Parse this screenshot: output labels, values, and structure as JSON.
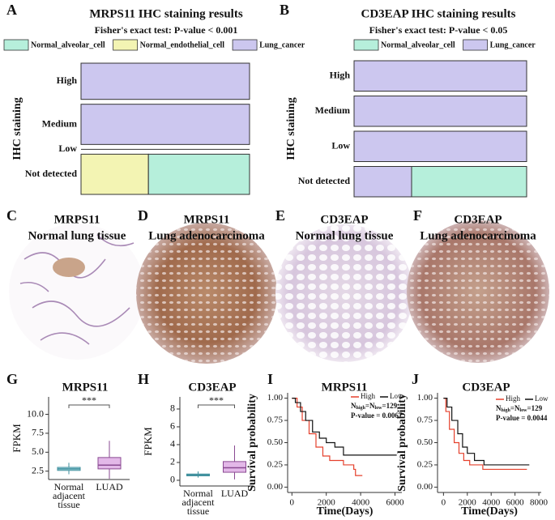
{
  "panel_labels": [
    "A",
    "B",
    "C",
    "D",
    "E",
    "F",
    "G",
    "H",
    "I",
    "J"
  ],
  "images": [
    {
      "title": "MRPS11",
      "subtitle": "Normal lung tissue"
    },
    {
      "title": "MRPS11",
      "subtitle": "Lung adenocarcinoma"
    },
    {
      "title": "CD3EAP",
      "subtitle": "Normal lung tissue"
    },
    {
      "title": "CD3EAP",
      "subtitle": "Lung adenocarcinoma"
    }
  ],
  "chart_data": [
    {
      "type": "mosaic",
      "title": "MRPS11 IHC staining results",
      "subtitle": "Fisher's exact test: P-value < 0.001",
      "ylabel": "IHC staining",
      "categories": [
        "High",
        "Medium",
        "Low",
        "Not detected"
      ],
      "series": [
        {
          "name": "Normal_alveolar_cell",
          "color": "#b6efdb",
          "values": [
            0,
            0,
            0,
            6
          ]
        },
        {
          "name": "Normal_endothelial_cell",
          "color": "#f3f4b3",
          "values": [
            0,
            0,
            0,
            4
          ]
        },
        {
          "name": "Lung_cancer",
          "color": "#ccc7ef",
          "values": [
            9,
            10,
            0,
            0
          ]
        }
      ]
    },
    {
      "type": "mosaic",
      "title": "CD3EAP IHC staining results",
      "subtitle": "Fisher's exact test: P-value < 0.05",
      "ylabel": "IHC staining",
      "categories": [
        "High",
        "Medium",
        "Low",
        "Not detected"
      ],
      "series": [
        {
          "name": "Normal_alveolar_cell",
          "color": "#b6efdb",
          "values": [
            0,
            0,
            0,
            4
          ]
        },
        {
          "name": "Lung_cancer",
          "color": "#ccc7ef",
          "values": [
            6,
            6,
            6,
            2
          ]
        }
      ]
    },
    {
      "type": "box",
      "title": "MRPS11",
      "ylabel": "FPKM",
      "annotation": "***",
      "categories": [
        "Normal adjacent tissue",
        "LUAD"
      ],
      "boxes": [
        {
          "whisker_low": 2.1,
          "q1": 2.6,
          "median": 2.8,
          "q3": 3.0,
          "whisker_high": 3.6,
          "color": "#a9dce6",
          "edge_color": "#3f8f9c"
        },
        {
          "whisker_low": 1.5,
          "q1": 2.8,
          "median": 3.3,
          "q3": 4.3,
          "whisker_high": 6.5,
          "color": "#dca6e2",
          "edge_color": "#8a4a92"
        }
      ],
      "ylim": [
        1.4,
        12.3
      ],
      "yticks": [
        {
          "value": 2.5,
          "label": "2.5"
        },
        {
          "value": 5,
          "label": "5.0"
        },
        {
          "value": 7.5,
          "label": "7.5"
        },
        {
          "value": 10,
          "label": "10.0"
        }
      ]
    },
    {
      "type": "box",
      "title": "CD3EAP",
      "ylabel": "FPKM",
      "annotation": "***",
      "categories": [
        "Normal adjacent tissue",
        "LUAD"
      ],
      "boxes": [
        {
          "whisker_low": 0.3,
          "q1": 0.5,
          "median": 0.6,
          "q3": 0.7,
          "whisker_high": 1.0,
          "color": "#a9dce6",
          "edge_color": "#3f8f9c"
        },
        {
          "whisker_low": 0.1,
          "q1": 0.9,
          "median": 1.4,
          "q3": 2.1,
          "whisker_high": 3.9,
          "color": "#dca6e2",
          "edge_color": "#8a4a92"
        }
      ],
      "ylim": [
        -0.64,
        9.36
      ],
      "yticks": [
        0,
        2,
        4,
        6,
        8
      ]
    },
    {
      "type": "km",
      "title": "MRPS11",
      "xlabel": "Time(Days)",
      "ylabel": "Survival probability",
      "n_label": [
        "N",
        "high",
        "=N",
        "low",
        "=129"
      ],
      "p_label": "P-value = 0.0067",
      "series": [
        {
          "name": "High",
          "color": "#e5402c",
          "x": [
            0,
            300,
            600,
            1000,
            1400,
            1800,
            2200,
            3000,
            3600,
            3700,
            4100
          ],
          "values": [
            1,
            0.9,
            0.75,
            0.6,
            0.45,
            0.35,
            0.3,
            0.25,
            0.2,
            0.13,
            0.13
          ]
        },
        {
          "name": "Low",
          "color": "#111111",
          "x": [
            0,
            200,
            500,
            800,
            1200,
            1600,
            2000,
            2500,
            3000,
            6100
          ],
          "values": [
            1,
            0.95,
            0.85,
            0.75,
            0.62,
            0.55,
            0.5,
            0.45,
            0.36,
            0.36
          ]
        }
      ],
      "xlim": [
        -250,
        6400
      ],
      "xticks": [
        0,
        2000,
        4000,
        6000
      ],
      "ylim": [
        -0.06,
        1.06
      ],
      "yticks": [
        {
          "value": 0,
          "label": "0.00"
        },
        {
          "value": 0.25,
          "label": "0.25"
        },
        {
          "value": 0.5,
          "label": "0.50"
        },
        {
          "value": 0.75,
          "label": "0.75"
        },
        {
          "value": 1,
          "label": "1.00"
        }
      ]
    },
    {
      "type": "km",
      "title": "CD3EAP",
      "xlabel": "Time(Days)",
      "ylabel": "Survival probability",
      "n_label": [
        "N",
        "high",
        "=N",
        "low",
        "=129"
      ],
      "p_label": "P-value = 0.0044",
      "series": [
        {
          "name": "High",
          "color": "#e5402c",
          "x": [
            0,
            200,
            500,
            900,
            1300,
            1700,
            2200,
            3300,
            7000
          ],
          "values": [
            1,
            0.85,
            0.65,
            0.5,
            0.38,
            0.3,
            0.25,
            0.2,
            0.2
          ]
        },
        {
          "name": "Low",
          "color": "#111111",
          "x": [
            0,
            300,
            700,
            1200,
            1600,
            2000,
            2600,
            3400,
            7200
          ],
          "values": [
            1,
            0.9,
            0.75,
            0.6,
            0.45,
            0.38,
            0.3,
            0.25,
            0.25
          ]
        }
      ],
      "xlim": [
        -500,
        8200
      ],
      "xticks": [
        0,
        2000,
        4000,
        6000,
        8000
      ],
      "ylim": [
        -0.06,
        1.06
      ],
      "yticks": [
        {
          "value": 0,
          "label": "0.00"
        },
        {
          "value": 0.25,
          "label": "0.25"
        },
        {
          "value": 0.5,
          "label": "0.50"
        },
        {
          "value": 0.75,
          "label": "0.75"
        },
        {
          "value": 1,
          "label": "1.00"
        }
      ]
    }
  ]
}
